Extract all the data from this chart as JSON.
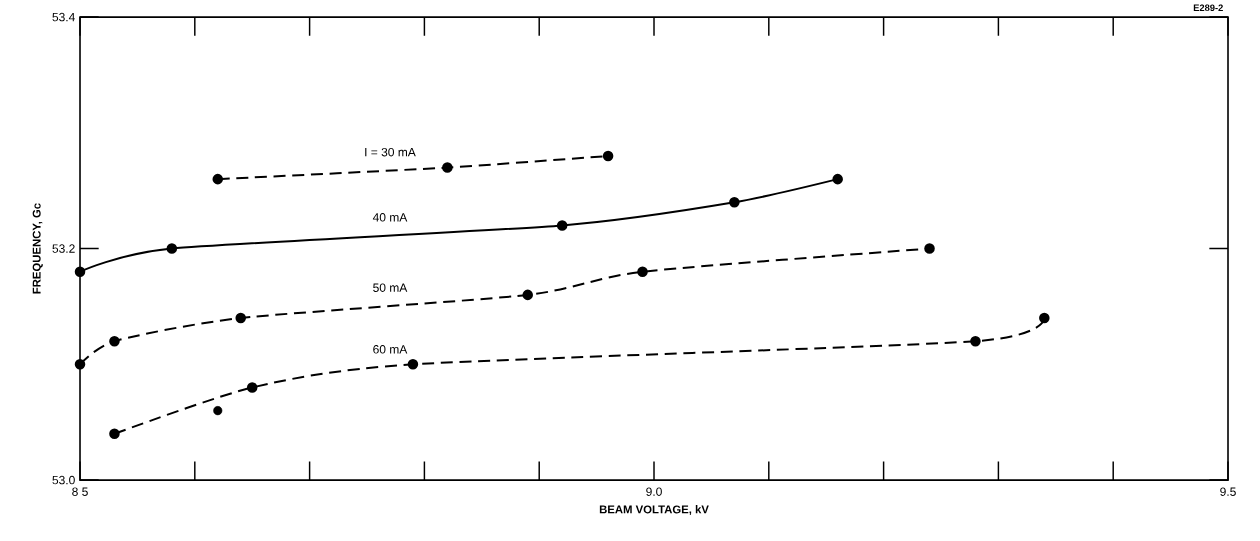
{
  "chart_data": {
    "type": "line",
    "xlabel": "BEAM VOLTAGE, kV",
    "ylabel": "FREQUENCY, Gc",
    "annotations": [
      "E289-2"
    ],
    "xlim": [
      8.5,
      9.5
    ],
    "ylim": [
      53.0,
      53.4
    ],
    "xticks": [
      {
        "value": 8.5,
        "label": "8 5"
      },
      {
        "value": 9.0,
        "label": "9.0"
      },
      9.5
    ],
    "yticks": [
      {
        "value": 53.0,
        "label": "53.0"
      },
      {
        "value": 53.2,
        "label": "53.2"
      },
      53.4
    ],
    "marker": "circle",
    "series": [
      {
        "name": "I = 30 mA",
        "color": "#000000",
        "line_style": "dashed",
        "x": [
          8.62,
          8.82,
          8.96
        ],
        "values": [
          53.26,
          53.27,
          53.28
        ]
      },
      {
        "name": "40 mA",
        "color": "#000000",
        "line_style": "solid",
        "x": [
          8.5,
          8.58,
          8.92,
          9.07,
          9.16
        ],
        "values": [
          53.18,
          53.2,
          53.22,
          53.24,
          53.26
        ]
      },
      {
        "name": "50 mA",
        "color": "#000000",
        "line_style": "dashed",
        "x": [
          8.5,
          8.53,
          8.64,
          8.89,
          8.99,
          9.24
        ],
        "values": [
          53.1,
          53.12,
          53.14,
          53.16,
          53.18,
          53.2
        ]
      },
      {
        "name": "60 mA",
        "color": "#000000",
        "line_style": "dashed",
        "x": [
          8.53,
          8.65,
          8.79,
          9.28,
          9.34
        ],
        "values": [
          53.04,
          53.08,
          53.1,
          53.12,
          53.14
        ]
      },
      {
        "type": "scatter",
        "color": "#000000",
        "x": [
          8.62
        ],
        "values": [
          53.06
        ]
      }
    ]
  }
}
